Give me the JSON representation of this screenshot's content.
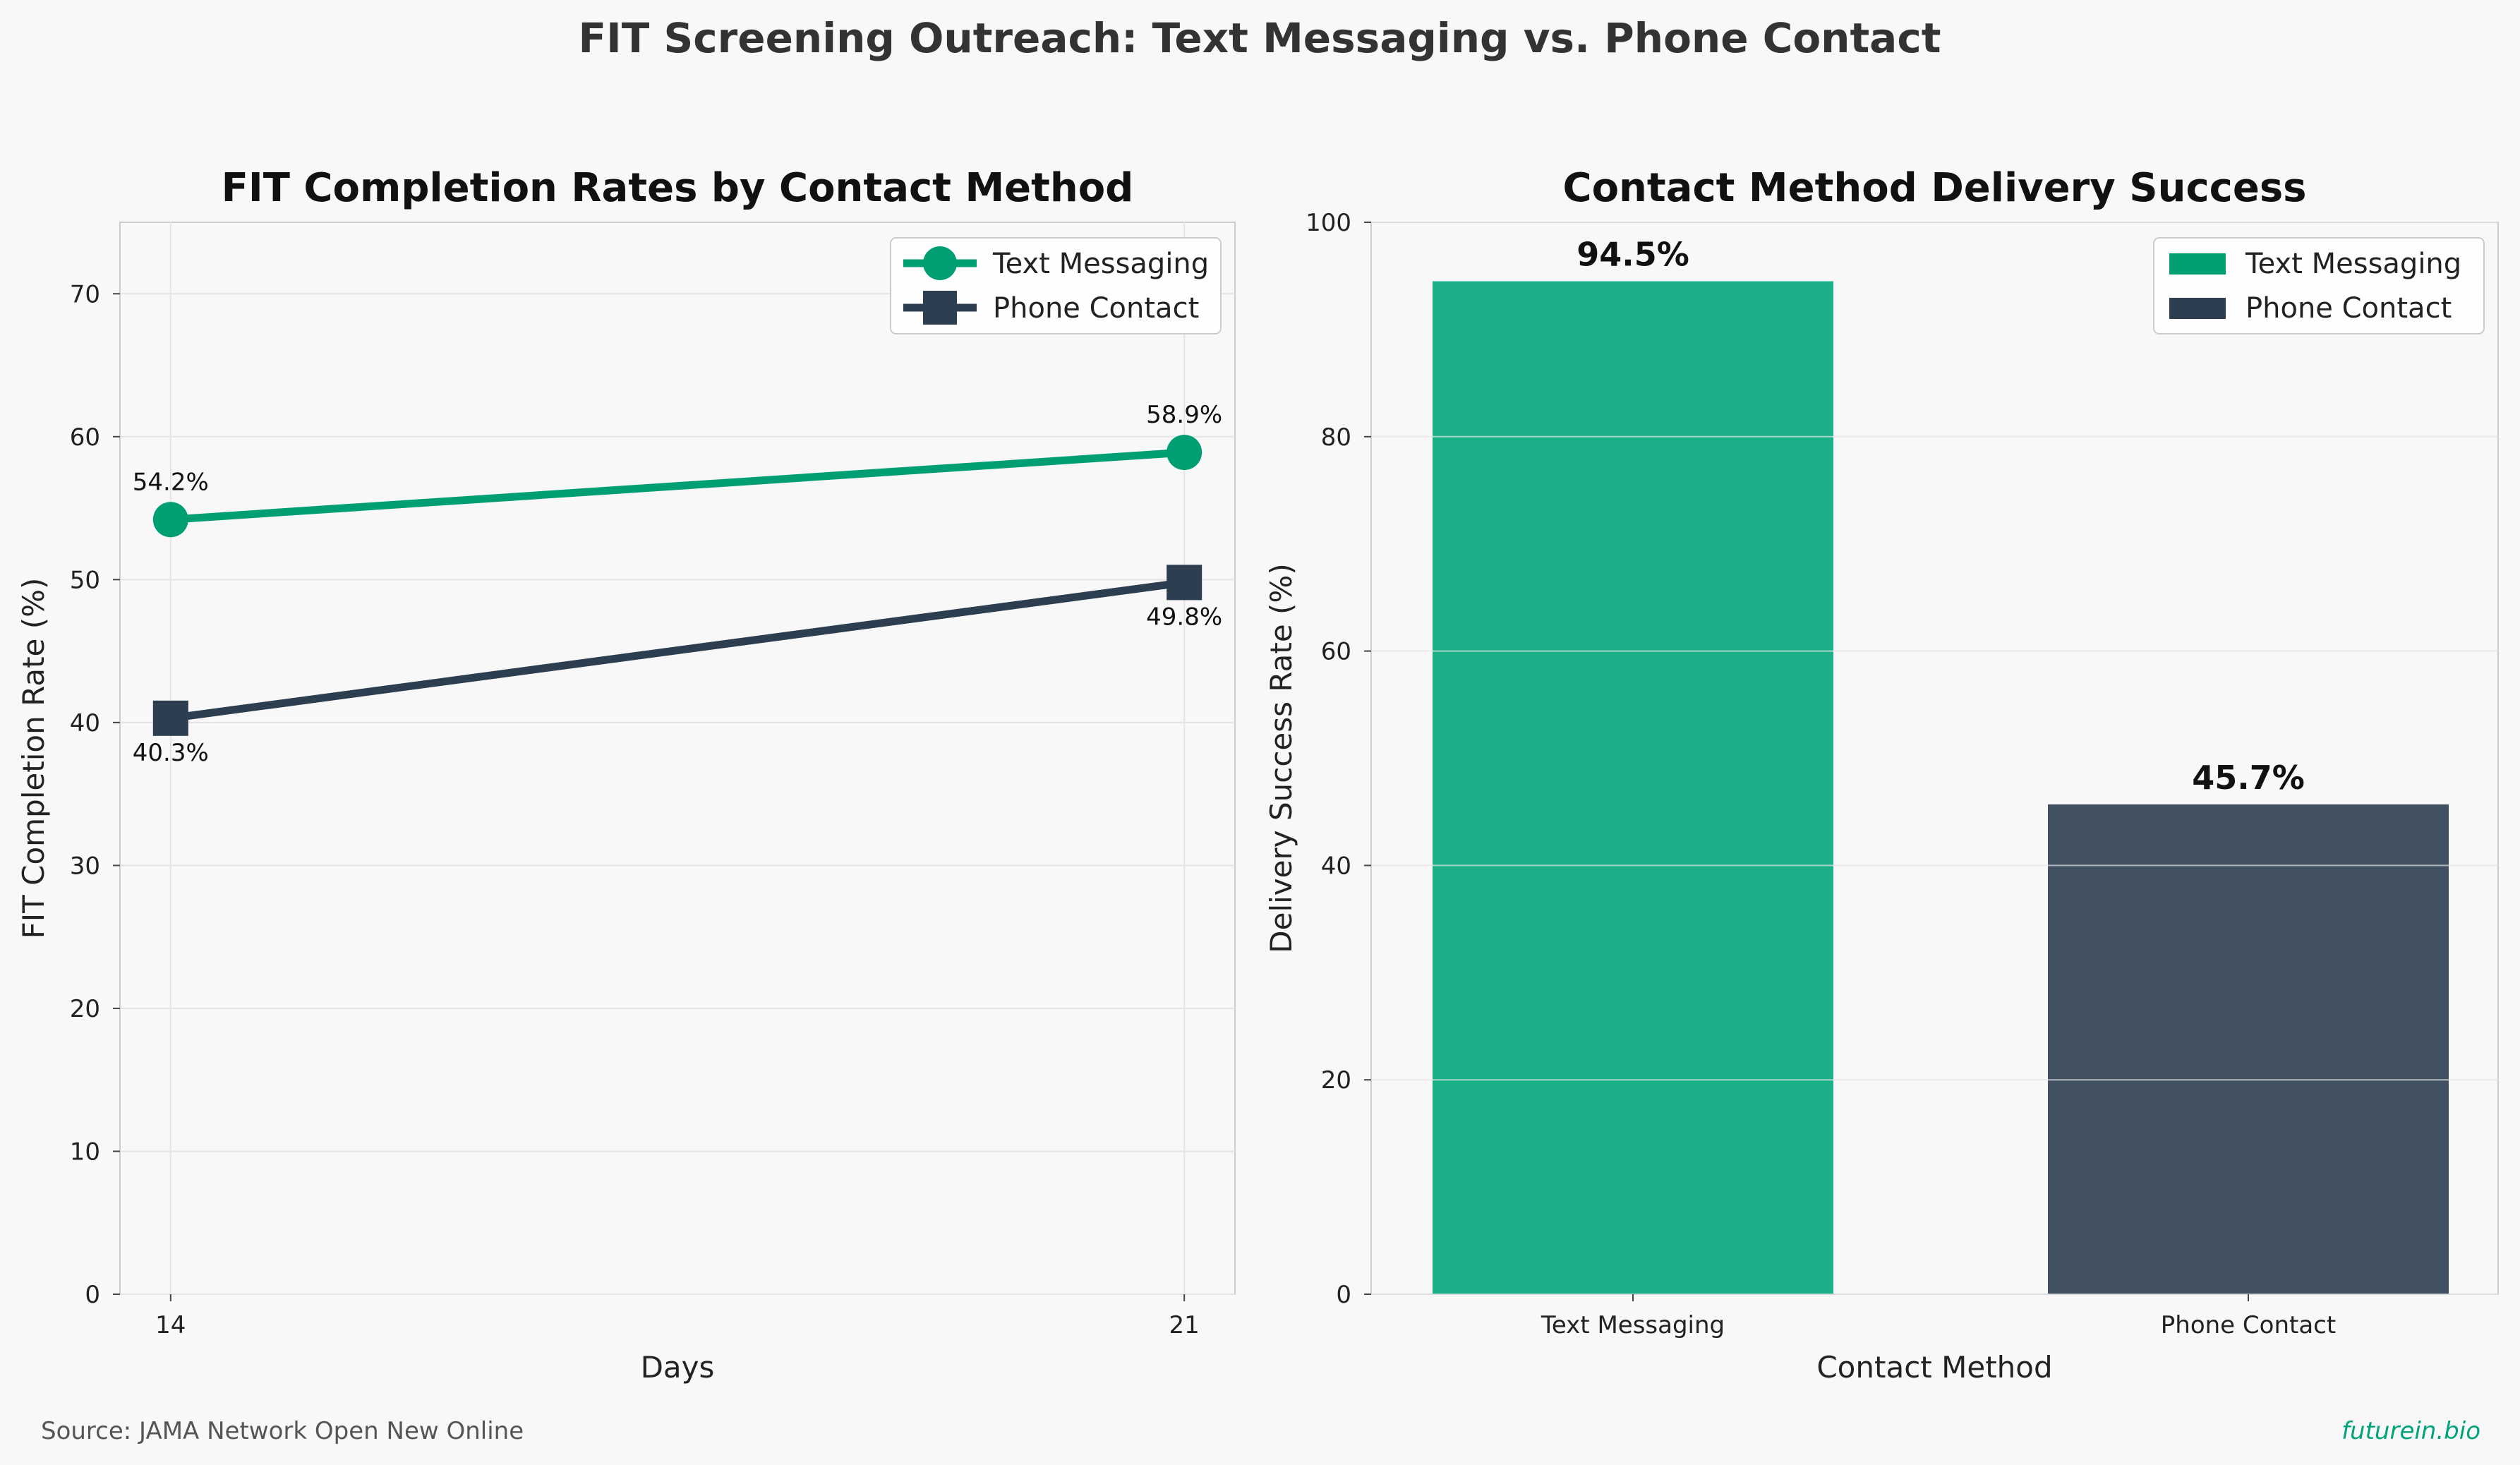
{
  "figure": {
    "title": "FIT Screening Outreach: Text Messaging vs. Phone Contact",
    "source": "Source: JAMA Network Open New Online",
    "brand": "futurein.bio"
  },
  "colors": {
    "text": "#009e73",
    "phone": "#2c3e50",
    "text_bar": "#1bb089",
    "phone_bar": "#415162"
  },
  "chart_data": [
    {
      "type": "line",
      "title": "FIT Completion Rates by Contact Method",
      "xlabel": "Days",
      "ylabel": "FIT Completion Rate (%)",
      "x": [
        14,
        21
      ],
      "x_ticks": [
        "14",
        "21"
      ],
      "xlim": [
        13.65,
        21.35
      ],
      "ylim": [
        0,
        75
      ],
      "y_ticks": [
        0,
        10,
        20,
        30,
        40,
        50,
        60,
        70
      ],
      "grid": true,
      "legend": "top-right",
      "series": [
        {
          "name": "Text Messaging",
          "marker": "circle",
          "values": [
            54.2,
            58.9
          ],
          "labels": [
            "54.2%",
            "58.9%"
          ]
        },
        {
          "name": "Phone Contact",
          "marker": "square",
          "values": [
            40.3,
            49.8
          ],
          "labels": [
            "40.3%",
            "49.8%"
          ]
        }
      ]
    },
    {
      "type": "bar",
      "title": "Contact Method Delivery Success",
      "xlabel": "Contact Method",
      "ylabel": "Delivery Success Rate (%)",
      "categories": [
        "Text Messaging",
        "Phone Contact"
      ],
      "values": [
        94.5,
        45.7
      ],
      "labels": [
        "94.5%",
        "45.7%"
      ],
      "ylim": [
        0,
        100
      ],
      "y_ticks": [
        0,
        20,
        40,
        60,
        80,
        100
      ],
      "grid": true,
      "legend": "top-right",
      "legend_entries": [
        "Text Messaging",
        "Phone Contact"
      ]
    }
  ]
}
